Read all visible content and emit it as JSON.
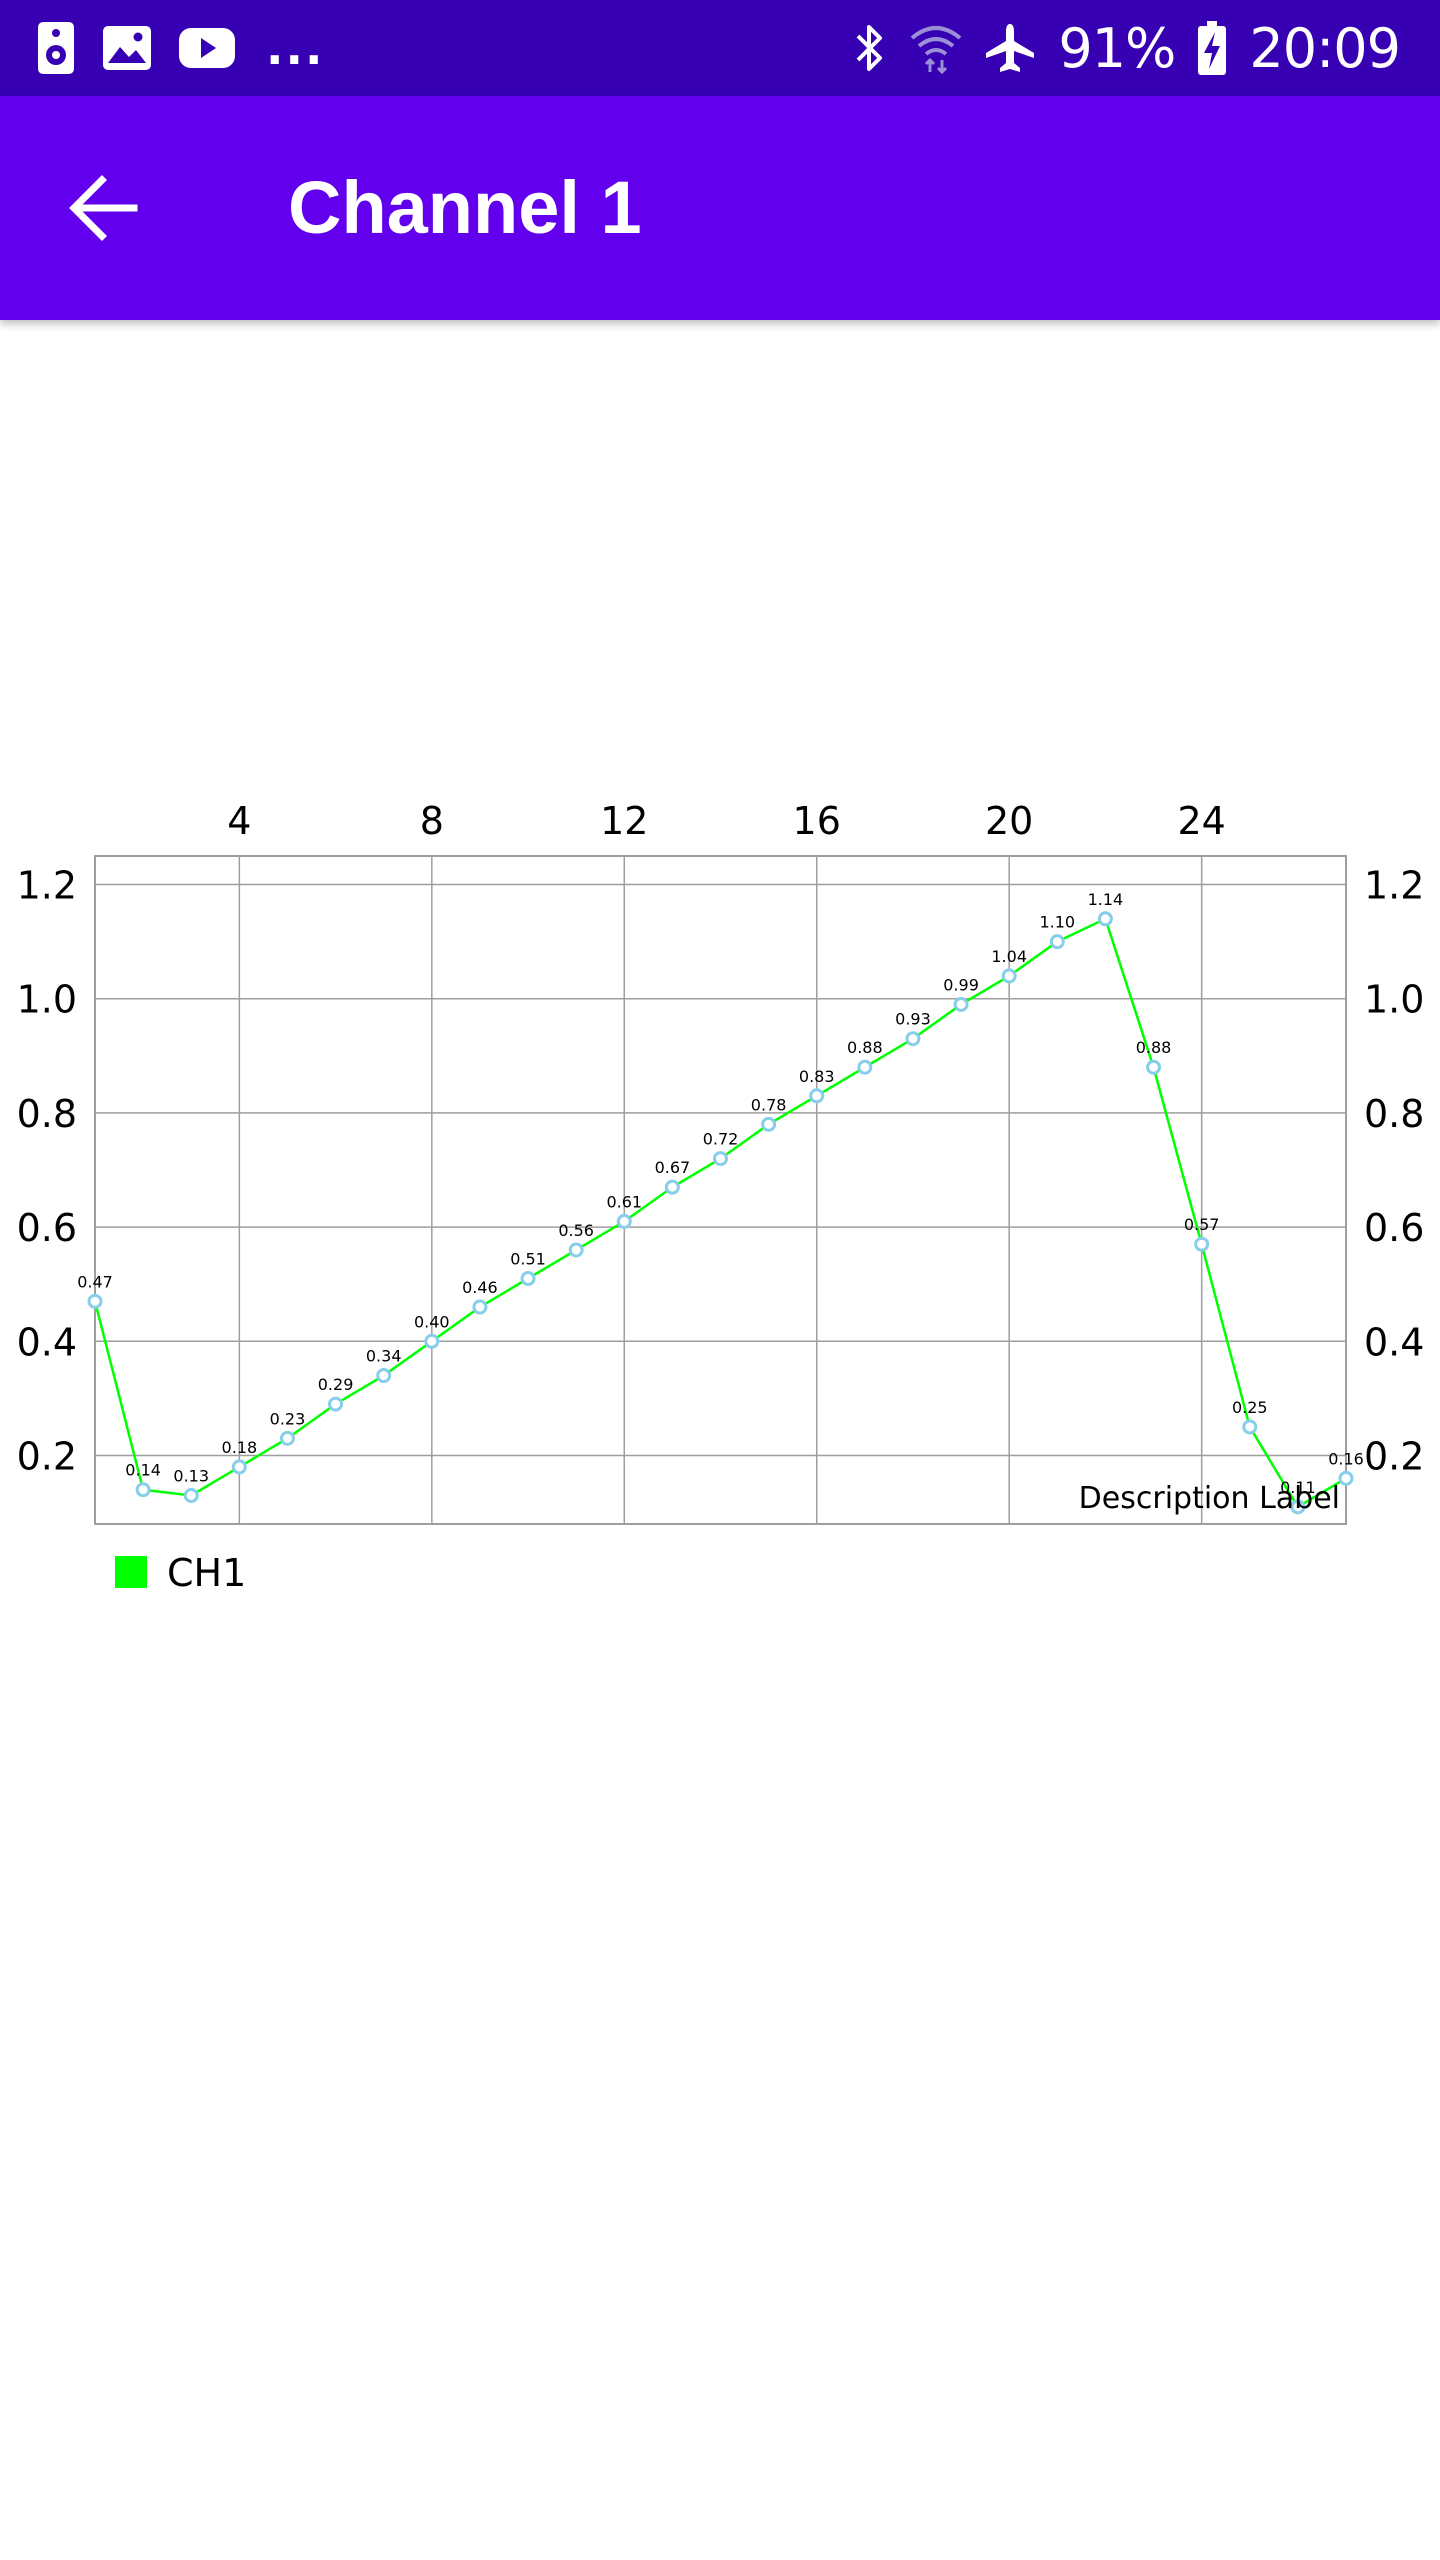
{
  "status_bar": {
    "battery": "91%",
    "time": "20:09",
    "overflow": "...",
    "left_icons": [
      "speaker-icon",
      "image-icon",
      "youtube-icon"
    ],
    "right_icons": [
      "bluetooth-icon",
      "wifi-icon",
      "airplane-icon",
      "battery-charging-icon"
    ]
  },
  "app_bar": {
    "title": "Channel 1",
    "background": "#6200ee",
    "status_background": "#3700b3",
    "back_icon": "arrow-back-icon"
  },
  "chart_data": {
    "type": "line",
    "x": [
      1,
      2,
      3,
      4,
      5,
      6,
      7,
      8,
      9,
      10,
      11,
      12,
      13,
      14,
      15,
      16,
      17,
      18,
      19,
      20,
      21,
      22,
      23,
      24,
      25,
      26,
      27
    ],
    "series": [
      {
        "name": "CH1",
        "color": "#00ff00",
        "marker_color": "#87ceeb",
        "values": [
          0.47,
          0.14,
          0.13,
          0.18,
          0.23,
          0.29,
          0.34,
          0.4,
          0.46,
          0.51,
          0.56,
          0.61,
          0.67,
          0.72,
          0.78,
          0.83,
          0.88,
          0.93,
          0.99,
          1.04,
          1.1,
          1.14,
          0.88,
          0.57,
          0.25,
          0.11,
          0.16
        ],
        "labels": [
          "0.47",
          "0.14",
          "0.13",
          "0.18",
          "0.23",
          "0.29",
          "0.34",
          "0.40",
          "0.46",
          "0.51",
          "0.56",
          "0.61",
          "0.67",
          "0.72",
          "0.78",
          "0.83",
          "0.88",
          "0.93",
          "0.99",
          "1.04",
          "1.10",
          "1.14",
          "0.88",
          "0.57",
          "0.25",
          "0.11",
          "0.16"
        ]
      }
    ],
    "x_ticks": [
      "4",
      "8",
      "12",
      "16",
      "20",
      "24"
    ],
    "x_tick_values": [
      4,
      8,
      12,
      16,
      20,
      24
    ],
    "y_ticks": [
      "0.2",
      "0.4",
      "0.6",
      "0.8",
      "1.0",
      "1.2"
    ],
    "y_tick_values": [
      0.2,
      0.4,
      0.6,
      0.8,
      1.0,
      1.2
    ],
    "xlim": [
      1,
      27
    ],
    "ylim": [
      0.08,
      1.25
    ],
    "x_axis_position": "top",
    "y_axis": "left and right",
    "grid": true,
    "description": "Description Label",
    "legend_position": "bottom-left"
  }
}
